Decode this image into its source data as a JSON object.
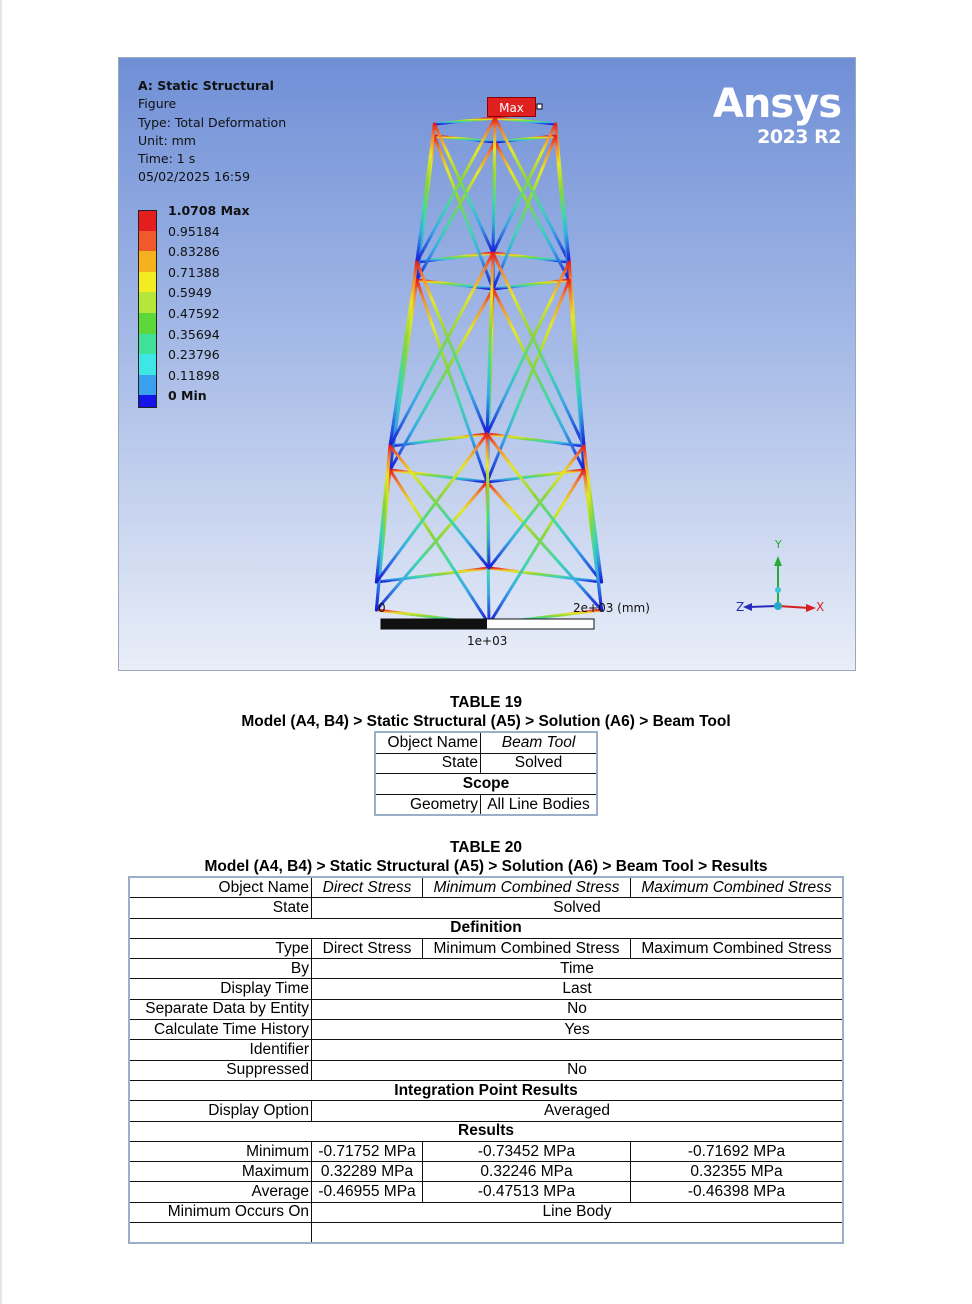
{
  "figure": {
    "title": "A: Static Structural",
    "lines": [
      "Figure",
      "Type: Total Deformation",
      "Unit: mm",
      "Time: 1 s",
      "05/02/2025 16:59"
    ],
    "legend": [
      {
        "label": "1.0708 Max",
        "color": "#e41e1e",
        "bold": true
      },
      {
        "label": "0.95184",
        "color": "#f05a2a"
      },
      {
        "label": "0.83286",
        "color": "#f5b21e"
      },
      {
        "label": "0.71388",
        "color": "#f2ec22"
      },
      {
        "label": "0.5949",
        "color": "#b6e63a"
      },
      {
        "label": "0.47592",
        "color": "#5cd83a"
      },
      {
        "label": "0.35694",
        "color": "#3ee09a"
      },
      {
        "label": "0.23796",
        "color": "#3ee6e6"
      },
      {
        "label": "0.11898",
        "color": "#3aa0ee"
      },
      {
        "label": "0 Min",
        "color": "#1414e6",
        "bold": true
      }
    ],
    "brand": "Ansys",
    "version": "2023 R2",
    "max_tag": "Max",
    "scale_zero": "0",
    "scale_end": "2e+03 (mm)",
    "scale_mid": "1e+03",
    "axis_y": "Y",
    "axis_x": "X",
    "axis_z": "Z"
  },
  "table19": {
    "caption": "TABLE 19",
    "path": "Model (A4, B4) > Static Structural (A5) > Solution (A6) > Beam Tool",
    "rows": [
      {
        "k": "Object Name",
        "v": "Beam Tool",
        "italic": true
      },
      {
        "k": "State",
        "v": "Solved"
      }
    ],
    "scope_header": "Scope",
    "scope_rows": [
      {
        "k": "Geometry",
        "v": "All Line Bodies"
      }
    ]
  },
  "table20": {
    "caption": "TABLE 20",
    "path": "Model (A4, B4) > Static Structural (A5) > Solution (A6) > Beam Tool > Results",
    "object_name_label": "Object Name",
    "object_names": [
      "Direct Stress",
      "Minimum Combined Stress",
      "Maximum Combined Stress"
    ],
    "state_label": "State",
    "state_value": "Solved",
    "definition_header": "Definition",
    "type_label": "Type",
    "types": [
      "Direct Stress",
      "Minimum Combined Stress",
      "Maximum Combined Stress"
    ],
    "definition_rows": [
      {
        "k": "By",
        "v": "Time"
      },
      {
        "k": "Display Time",
        "v": "Last"
      },
      {
        "k": "Separate Data by Entity",
        "v": "No"
      },
      {
        "k": "Calculate Time History",
        "v": "Yes"
      },
      {
        "k": "Identifier",
        "v": ""
      },
      {
        "k": "Suppressed",
        "v": "No"
      }
    ],
    "integration_header": "Integration Point Results",
    "display_option_label": "Display Option",
    "display_option_value": "Averaged",
    "results_header": "Results",
    "result_rows": [
      {
        "k": "Minimum",
        "v": [
          "-0.71752 MPa",
          "-0.73452 MPa",
          "-0.71692 MPa"
        ]
      },
      {
        "k": "Maximum",
        "v": [
          "0.32289 MPa",
          "0.32246 MPa",
          "0.32355 MPa"
        ]
      },
      {
        "k": "Average",
        "v": [
          "-0.46955 MPa",
          "-0.47513 MPa",
          "-0.46398 MPa"
        ]
      }
    ],
    "min_occurs_label": "Minimum Occurs On",
    "min_occurs_value": "Line Body"
  }
}
